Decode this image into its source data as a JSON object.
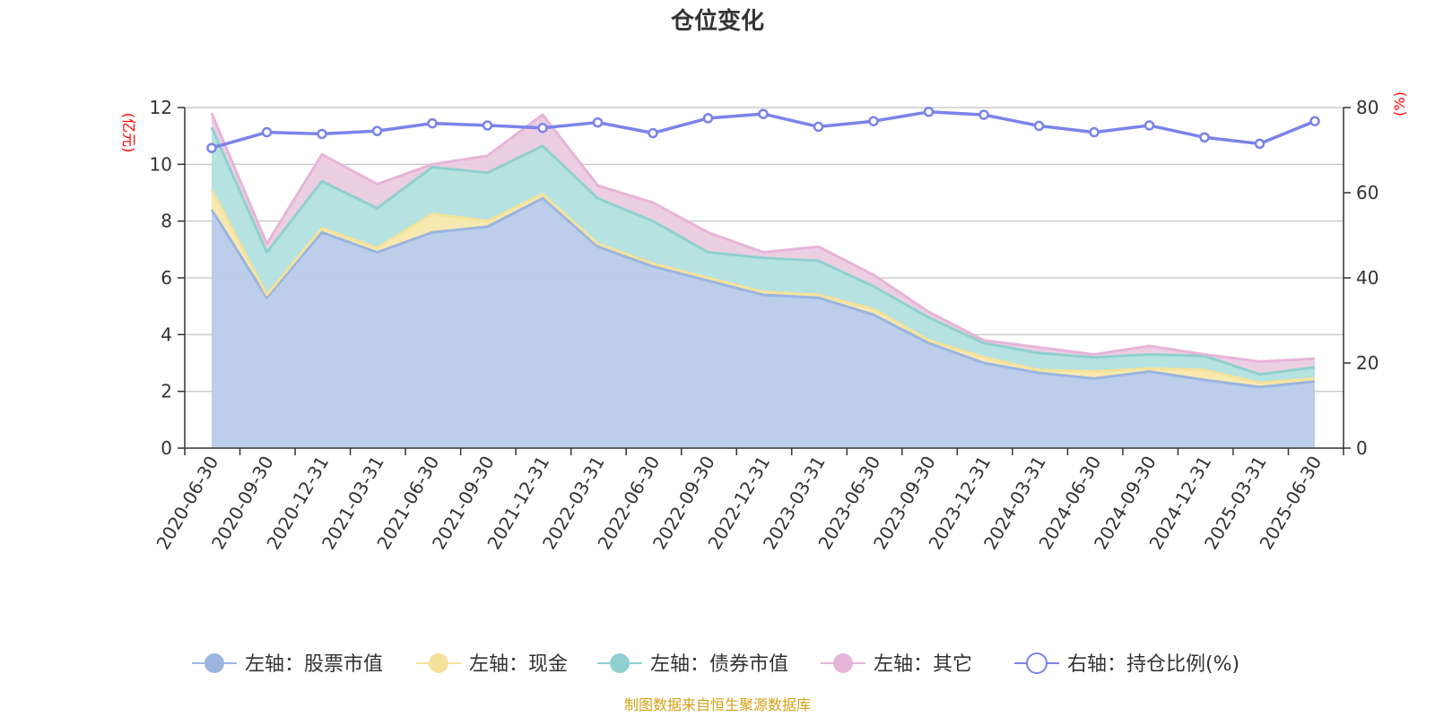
{
  "chart_data": {
    "type": "area",
    "title": "仓位变化",
    "left_axis_unit": "(亿元)",
    "right_axis_unit": "(%)",
    "categories": [
      "2020-06-30",
      "2020-09-30",
      "2020-12-31",
      "2021-03-31",
      "2021-06-30",
      "2021-09-30",
      "2021-12-31",
      "2022-03-31",
      "2022-06-30",
      "2022-09-30",
      "2022-12-31",
      "2023-03-31",
      "2023-06-30",
      "2023-09-30",
      "2023-12-31",
      "2024-03-31",
      "2024-06-30",
      "2024-09-30",
      "2024-12-31",
      "2025-03-31",
      "2025-06-30"
    ],
    "left_axis": {
      "min": 0,
      "max": 12,
      "ticks": [
        0,
        2,
        4,
        6,
        8,
        10,
        12
      ]
    },
    "right_axis": {
      "min": 0,
      "max": 80,
      "ticks": [
        0,
        20,
        40,
        60,
        80
      ]
    },
    "series": [
      {
        "name": "左轴：股票市值",
        "axis": "left",
        "stack": true,
        "color": "#9bb5e0",
        "fill": "#b8cbe9",
        "values": [
          8.4,
          5.3,
          7.6,
          6.9,
          7.6,
          7.8,
          8.8,
          7.1,
          6.4,
          5.9,
          5.4,
          5.3,
          4.7,
          3.7,
          3.0,
          2.65,
          2.45,
          2.7,
          2.4,
          2.15,
          2.35
        ]
      },
      {
        "name": "左轴：现金",
        "axis": "left",
        "stack": true,
        "color": "#f5e29a",
        "fill": "#f7e8ac",
        "values": [
          0.7,
          0.1,
          0.15,
          0.15,
          0.65,
          0.2,
          0.15,
          0.1,
          0.1,
          0.1,
          0.1,
          0.1,
          0.2,
          0.1,
          0.2,
          0.1,
          0.25,
          0.1,
          0.35,
          0.15,
          0.1
        ]
      },
      {
        "name": "左轴：债券市值",
        "axis": "left",
        "stack": true,
        "color": "#8fd1cf",
        "fill": "#b2e0df",
        "values": [
          2.2,
          1.5,
          1.65,
          1.4,
          1.65,
          1.7,
          1.7,
          1.6,
          1.5,
          0.9,
          1.2,
          1.2,
          0.8,
          0.8,
          0.5,
          0.6,
          0.5,
          0.5,
          0.5,
          0.3,
          0.4
        ]
      },
      {
        "name": "左轴：其它",
        "axis": "left",
        "stack": true,
        "color": "#e6b5d8",
        "fill": "#ebcbe2",
        "values": [
          0.5,
          0.3,
          0.95,
          0.85,
          0.1,
          0.6,
          1.1,
          0.45,
          0.65,
          0.7,
          0.2,
          0.5,
          0.4,
          0.2,
          0.1,
          0.2,
          0.1,
          0.3,
          0.05,
          0.45,
          0.3
        ]
      },
      {
        "name": "右轴：持仓比例(%)",
        "axis": "right",
        "stack": false,
        "color": "#7b83ea",
        "values": [
          70.5,
          74.2,
          73.8,
          74.5,
          76.3,
          75.8,
          75.2,
          76.5,
          74.0,
          77.5,
          78.5,
          75.5,
          76.8,
          79.0,
          78.3,
          75.7,
          74.2,
          75.8,
          73.0,
          71.5,
          76.8
        ]
      }
    ],
    "grid": true,
    "legend_position": "bottom"
  },
  "footer": {
    "source": "制图数据来自恒生聚源数据库"
  }
}
